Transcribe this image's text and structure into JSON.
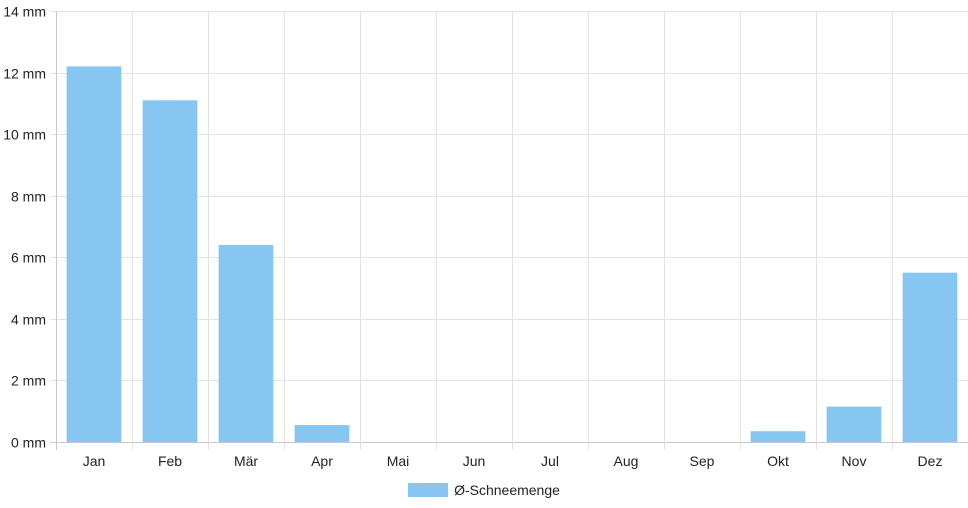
{
  "chart_data": {
    "type": "bar",
    "categories": [
      "Jan",
      "Feb",
      "Mär",
      "Apr",
      "Mai",
      "Jun",
      "Jul",
      "Aug",
      "Sep",
      "Okt",
      "Nov",
      "Dez"
    ],
    "series": [
      {
        "name": "Ø-Schneemenge",
        "values": [
          12.2,
          11.1,
          6.4,
          0.55,
          0,
          0,
          0,
          0,
          0,
          0.35,
          1.15,
          5.5
        ]
      }
    ],
    "y_ticks": [
      "0 mm",
      "2 mm",
      "4 mm",
      "6 mm",
      "8 mm",
      "10 mm",
      "12 mm",
      "14 mm"
    ],
    "ylim": [
      0,
      14
    ],
    "y_unit": "mm",
    "grid": true,
    "legend_position": "bottom",
    "colors": {
      "bar": "#88c6f2",
      "grid": "#e2e2e2",
      "axis": "#c8c8c8",
      "text": "#222222"
    }
  }
}
